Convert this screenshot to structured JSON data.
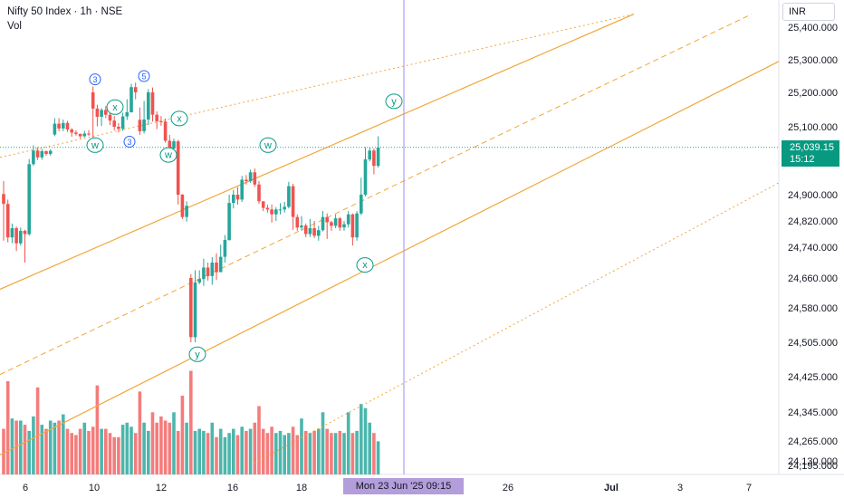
{
  "header": {
    "title": "Nifty 50 Index · 1h · NSE",
    "volume_label": "Vol"
  },
  "currency": "INR",
  "price_badge": {
    "price": "25,039.15",
    "countdown": "15:12",
    "color": "#089981"
  },
  "cursor": {
    "label": "Mon 23 Jun '25   09:15"
  },
  "colors": {
    "up": "#26a69a",
    "down": "#ef5350",
    "vol_up": "#4db6ac",
    "vol_down": "#f47c7c",
    "channel": "#f2a63a",
    "wave_label": "#089981",
    "wave_label_blue": "#2962ff",
    "cursor_line": "#9c8cf0"
  },
  "chart_data": {
    "type": "candlestick",
    "symbol": "Nifty 50 Index",
    "timeframe": "1h",
    "exchange": "NSE",
    "last_price": 25039.15,
    "y_axis": {
      "min": 24110,
      "max": 25440,
      "ticks": [
        25400,
        25300,
        25200,
        25100,
        24900,
        24820,
        24740,
        24660,
        24580,
        24505,
        24425,
        24345,
        24265,
        24195,
        24130
      ]
    },
    "x_axis": {
      "ticks": [
        "6",
        "10",
        "12",
        "16",
        "18",
        "26",
        "Jul",
        "3",
        "7"
      ],
      "cursor_label": "Mon 23 Jun '25   09:15"
    },
    "candles": [
      [
        24902,
        24872,
        24940,
        24760
      ],
      [
        24872,
        24770,
        24885,
        24755
      ],
      [
        24770,
        24798,
        24812,
        24752
      ],
      [
        24798,
        24752,
        24803,
        24730
      ],
      [
        24752,
        24790,
        24800,
        24745
      ],
      [
        24790,
        24780,
        24793,
        24700
      ],
      [
        24780,
        24990,
        25005,
        24775
      ],
      [
        24990,
        25030,
        25045,
        24985
      ],
      [
        25030,
        25010,
        25040,
        25002
      ],
      [
        25010,
        25028,
        25035,
        25003
      ],
      [
        25028,
        25020,
        25030,
        25015
      ],
      [
        25020,
        25029,
        25034,
        25015
      ],
      [
        25077,
        25109,
        25125,
        25072
      ],
      [
        25109,
        25095,
        25125,
        25087
      ],
      [
        25095,
        25111,
        25121,
        25087
      ],
      [
        25111,
        25092,
        25117,
        25085
      ],
      [
        25092,
        25083,
        25096,
        25071
      ],
      [
        25083,
        25079,
        25089,
        25074
      ],
      [
        25079,
        25072,
        25080,
        25066
      ],
      [
        25072,
        25080,
        25088,
        25069
      ],
      [
        25080,
        25079,
        25090,
        25073
      ],
      [
        25200,
        25153,
        25218,
        25057
      ],
      [
        25153,
        25129,
        25164,
        25101
      ],
      [
        25129,
        25149,
        25154,
        25102
      ],
      [
        25149,
        25135,
        25160,
        25125
      ],
      [
        25135,
        25118,
        25141,
        25105
      ],
      [
        25118,
        25100,
        25131,
        25090
      ],
      [
        25100,
        25094,
        25111,
        25083
      ],
      [
        25094,
        25130,
        25141,
        25088
      ],
      [
        25130,
        25142,
        25180,
        25120
      ],
      [
        25142,
        25216,
        25226,
        25141
      ],
      [
        25216,
        25200,
        25230,
        25180
      ],
      [
        25120,
        25087,
        25156,
        25076
      ],
      [
        25087,
        25121,
        25175,
        25080
      ],
      [
        25121,
        25200,
        25210,
        25105
      ],
      [
        25200,
        25135,
        25215,
        25115
      ],
      [
        25135,
        25116,
        25145,
        25093
      ],
      [
        25116,
        25115,
        25131,
        25103
      ],
      [
        25115,
        25059,
        25124,
        25053
      ],
      [
        25059,
        25036,
        25076,
        25021
      ],
      [
        25036,
        25057,
        25065,
        25031
      ],
      [
        25057,
        24900,
        25062,
        24870
      ],
      [
        24900,
        24832,
        24902,
        24826
      ],
      [
        24832,
        24866,
        24880,
        24818
      ],
      [
        24660,
        24516,
        24670,
        24505
      ],
      [
        24516,
        24648,
        24680,
        24505
      ],
      [
        24648,
        24657,
        24680,
        24643
      ],
      [
        24657,
        24687,
        24710,
        24639
      ],
      [
        24687,
        24665,
        24700,
        24653
      ],
      [
        24665,
        24700,
        24714,
        24642
      ],
      [
        24700,
        24675,
        24724,
        24655
      ],
      [
        24675,
        24715,
        24748,
        24680
      ],
      [
        24715,
        24762,
        24777,
        24700
      ],
      [
        24762,
        24875,
        24900,
        24760
      ],
      [
        24875,
        24900,
        24914,
        24858
      ],
      [
        24900,
        24885,
        24922,
        24870
      ],
      [
        24885,
        24944,
        24955,
        24878
      ],
      [
        24944,
        24940,
        24958,
        24930
      ],
      [
        24940,
        24966,
        24974,
        24935
      ],
      [
        24966,
        24930,
        24977,
        24923
      ],
      [
        24930,
        24880,
        24940,
        24872
      ],
      [
        24880,
        24860,
        24880,
        24850
      ],
      [
        24860,
        24855,
        24870,
        24845
      ],
      [
        24855,
        24840,
        24870,
        24815
      ],
      [
        24840,
        24855,
        24862,
        24820
      ],
      [
        24855,
        24855,
        24874,
        24840
      ],
      [
        24855,
        24863,
        24878,
        24845
      ],
      [
        24863,
        24925,
        24938,
        24858
      ],
      [
        24925,
        24832,
        24932,
        24793
      ],
      [
        24832,
        24800,
        24840,
        24790
      ],
      [
        24800,
        24806,
        24835,
        24790
      ],
      [
        24806,
        24780,
        24812,
        24770
      ],
      [
        24780,
        24798,
        24826,
        24771
      ],
      [
        24798,
        24775,
        24820,
        24768
      ],
      [
        24775,
        24792,
        24805,
        24760
      ],
      [
        24792,
        24832,
        24850,
        24788
      ],
      [
        24832,
        24816,
        24843,
        24765
      ],
      [
        24816,
        24805,
        24820,
        24790
      ],
      [
        24805,
        24828,
        24840,
        24798
      ],
      [
        24828,
        24800,
        24832,
        24790
      ],
      [
        24800,
        24810,
        24820,
        24790
      ],
      [
        24810,
        24840,
        24850,
        24800
      ],
      [
        24840,
        24770,
        24843,
        24745
      ],
      [
        24770,
        24843,
        24850,
        24760
      ],
      [
        24843,
        24900,
        24950,
        24838
      ],
      [
        24900,
        25004,
        25040,
        24895
      ],
      [
        25004,
        25030,
        25040,
        24998
      ],
      [
        25030,
        24985,
        25036,
        24960
      ],
      [
        24985,
        25039,
        25072,
        24980
      ]
    ],
    "volume_ratio": [
      0.22,
      0.45,
      0.27,
      0.26,
      0.26,
      0.24,
      0.21,
      0.28,
      0.42,
      0.24,
      0.22,
      0.26,
      0.25,
      0.26,
      0.29,
      0.22,
      0.2,
      0.19,
      0.22,
      0.25,
      0.21,
      0.23,
      0.43,
      0.22,
      0.22,
      0.2,
      0.18,
      0.18,
      0.24,
      0.25,
      0.23,
      0.2,
      0.4,
      0.25,
      0.21,
      0.3,
      0.25,
      0.28,
      0.26,
      0.25,
      0.3,
      0.21,
      0.38,
      0.25,
      0.5,
      0.21,
      0.22,
      0.21,
      0.2,
      0.25,
      0.18,
      0.22,
      0.18,
      0.2,
      0.22,
      0.19,
      0.23,
      0.21,
      0.22,
      0.25,
      0.33,
      0.22,
      0.2,
      0.23,
      0.2,
      0.21,
      0.19,
      0.2,
      0.23,
      0.19,
      0.27,
      0.21,
      0.2,
      0.21,
      0.22,
      0.3,
      0.22,
      0.2,
      0.2,
      0.21,
      0.2,
      0.3,
      0.2,
      0.21,
      0.34,
      0.32,
      0.25,
      0.2,
      0.16
    ],
    "channels": [
      {
        "name": "outer-upper",
        "style": "dotted",
        "p1": [
          0,
          25010
        ],
        "p2": [
          700,
          25440
        ]
      },
      {
        "name": "upper",
        "style": "solid",
        "p1": [
          0,
          24630
        ],
        "p2": [
          700,
          25440
        ]
      },
      {
        "name": "middle",
        "style": "dashed",
        "p1": [
          0,
          24430
        ],
        "p2": [
          830,
          25440
        ]
      },
      {
        "name": "lower",
        "style": "solid",
        "p1": [
          0,
          24225
        ],
        "p2": [
          860,
          25295
        ]
      },
      {
        "name": "outer-lower",
        "style": "dotted",
        "p1": [
          280,
          24165
        ],
        "p2": [
          860,
          24935
        ]
      }
    ],
    "wave_labels": [
      {
        "text": "3",
        "x": 105,
        "y": 25240,
        "color": "blue"
      },
      {
        "text": "x",
        "x": 127,
        "y": 25157,
        "color": "green"
      },
      {
        "text": "5",
        "x": 159,
        "y": 25250,
        "color": "blue"
      },
      {
        "text": "3",
        "x": 143,
        "y": 25056,
        "color": "blue"
      },
      {
        "text": "w",
        "x": 105,
        "y": 25046,
        "color": "green"
      },
      {
        "text": "x",
        "x": 198,
        "y": 25124,
        "color": "green"
      },
      {
        "text": "w",
        "x": 186,
        "y": 25017,
        "color": "green"
      },
      {
        "text": "w",
        "x": 296,
        "y": 25046,
        "color": "green"
      },
      {
        "text": "y",
        "x": 435,
        "y": 25174,
        "color": "green"
      },
      {
        "text": "x",
        "x": 403,
        "y": 24694,
        "color": "green"
      },
      {
        "text": "y",
        "x": 218,
        "y": 24477,
        "color": "green"
      }
    ]
  }
}
